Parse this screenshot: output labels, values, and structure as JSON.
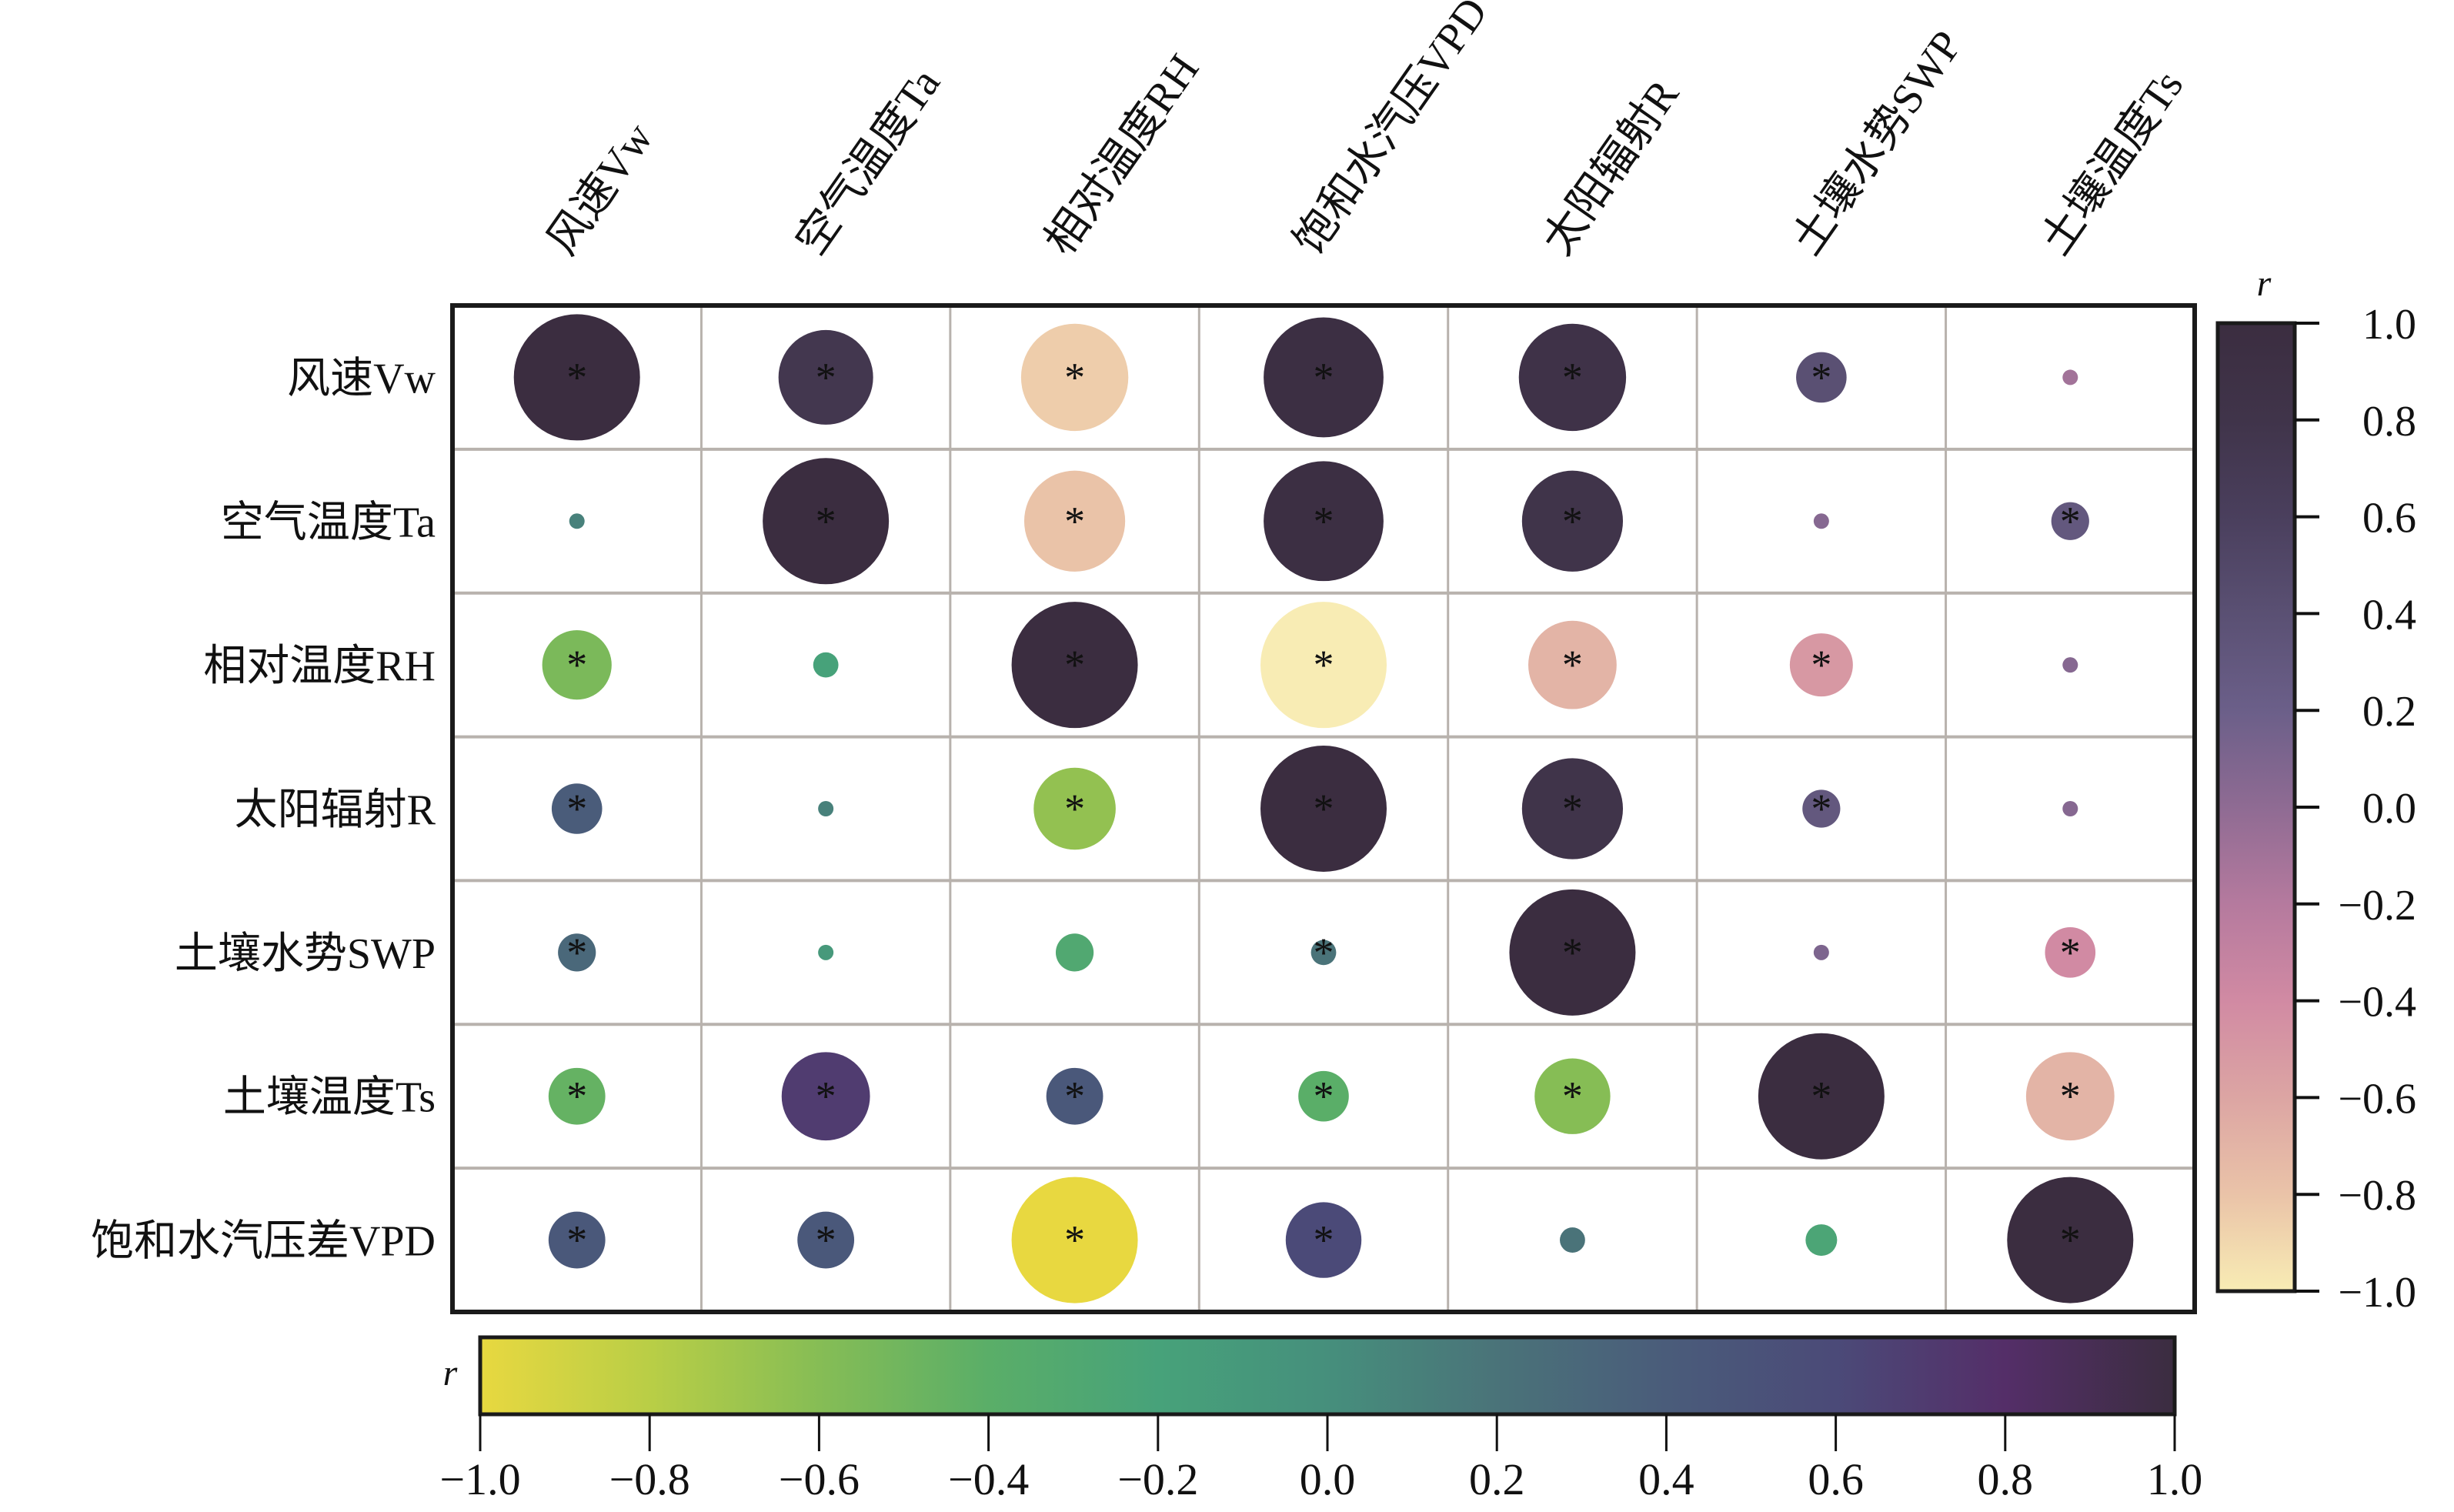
{
  "chart_data": {
    "type": "heatmap",
    "subtype": "correlation-circle-matrix",
    "title": "",
    "row_labels": [
      "风速Vw",
      "空气温度Ta",
      "相对温度RH",
      "太阳辐射R",
      "土壤水势SWP",
      "土壤温度Ts",
      "饱和水汽压差VPD"
    ],
    "col_labels": [
      "风速Vw",
      "空气温度Ta",
      "相对温度RH",
      "饱和水汽压VPD",
      "太阳辐射R",
      "土壤水势SWP",
      "土壤温度Ts"
    ],
    "values": [
      [
        1.0,
        0.75,
        -0.85,
        0.95,
        0.85,
        0.4,
        -0.1
      ],
      [
        0.1,
        1.0,
        -0.8,
        0.95,
        0.8,
        0.05,
        0.3
      ],
      [
        -0.55,
        -0.2,
        1.0,
        -1.0,
        -0.7,
        -0.5,
        0.05
      ],
      [
        0.4,
        0.1,
        -0.65,
        1.0,
        0.8,
        0.3,
        0.05
      ],
      [
        0.3,
        -0.1,
        -0.3,
        0.2,
        1.0,
        0.1,
        -0.4
      ],
      [
        -0.45,
        0.7,
        0.45,
        -0.4,
        -0.6,
        1.0,
        -0.7
      ],
      [
        0.45,
        0.45,
        -1.0,
        0.6,
        0.2,
        -0.25,
        1.0
      ]
    ],
    "significant": [
      [
        true,
        true,
        true,
        true,
        true,
        true,
        false
      ],
      [
        false,
        true,
        true,
        true,
        true,
        false,
        true
      ],
      [
        true,
        false,
        true,
        true,
        true,
        true,
        false
      ],
      [
        true,
        false,
        true,
        true,
        true,
        true,
        false
      ],
      [
        true,
        false,
        false,
        true,
        true,
        false,
        true
      ],
      [
        true,
        true,
        true,
        true,
        true,
        true,
        true
      ],
      [
        true,
        true,
        true,
        true,
        false,
        false,
        true
      ]
    ],
    "lower_triangle_colormap": "bottom",
    "significance_marker": "*",
    "colorbar_right": {
      "label": "r",
      "range": [
        -1.0,
        1.0
      ],
      "ticks": [
        "1.0",
        "0.8",
        "0.6",
        "0.4",
        "0.2",
        "0.0",
        "−0.2",
        "−0.4",
        "−0.6",
        "−0.8",
        "−1.0"
      ],
      "tick_values": [
        1.0,
        0.8,
        0.6,
        0.4,
        0.2,
        0.0,
        -0.2,
        -0.4,
        -0.6,
        -0.8,
        -1.0
      ],
      "stops": [
        "#f8ecb4",
        "#eac3a8",
        "#dca5a3",
        "#d18aa3",
        "#b57a9e",
        "#8f6b93",
        "#6b5f89",
        "#5a5073",
        "#4a3f5d",
        "#40344a",
        "#3b2d40"
      ]
    },
    "colorbar_bottom": {
      "label": "r",
      "range": [
        -1.0,
        1.0
      ],
      "ticks": [
        "−1.0",
        "−0.8",
        "−0.6",
        "−0.4",
        "−0.2",
        "0.0",
        "0.2",
        "0.4",
        "0.6",
        "0.8",
        "1.0"
      ],
      "tick_values": [
        -1.0,
        -0.8,
        -0.6,
        -0.4,
        -0.2,
        0.0,
        0.2,
        0.4,
        0.6,
        0.8,
        1.0
      ],
      "stops": [
        "#e8d840",
        "#b9ce46",
        "#86bd55",
        "#5aae68",
        "#47a27a",
        "#468f7c",
        "#4a7379",
        "#4a5c7a",
        "#4b4a78",
        "#542e68",
        "#3b2d40"
      ]
    },
    "legend_placement": "right and bottom"
  }
}
